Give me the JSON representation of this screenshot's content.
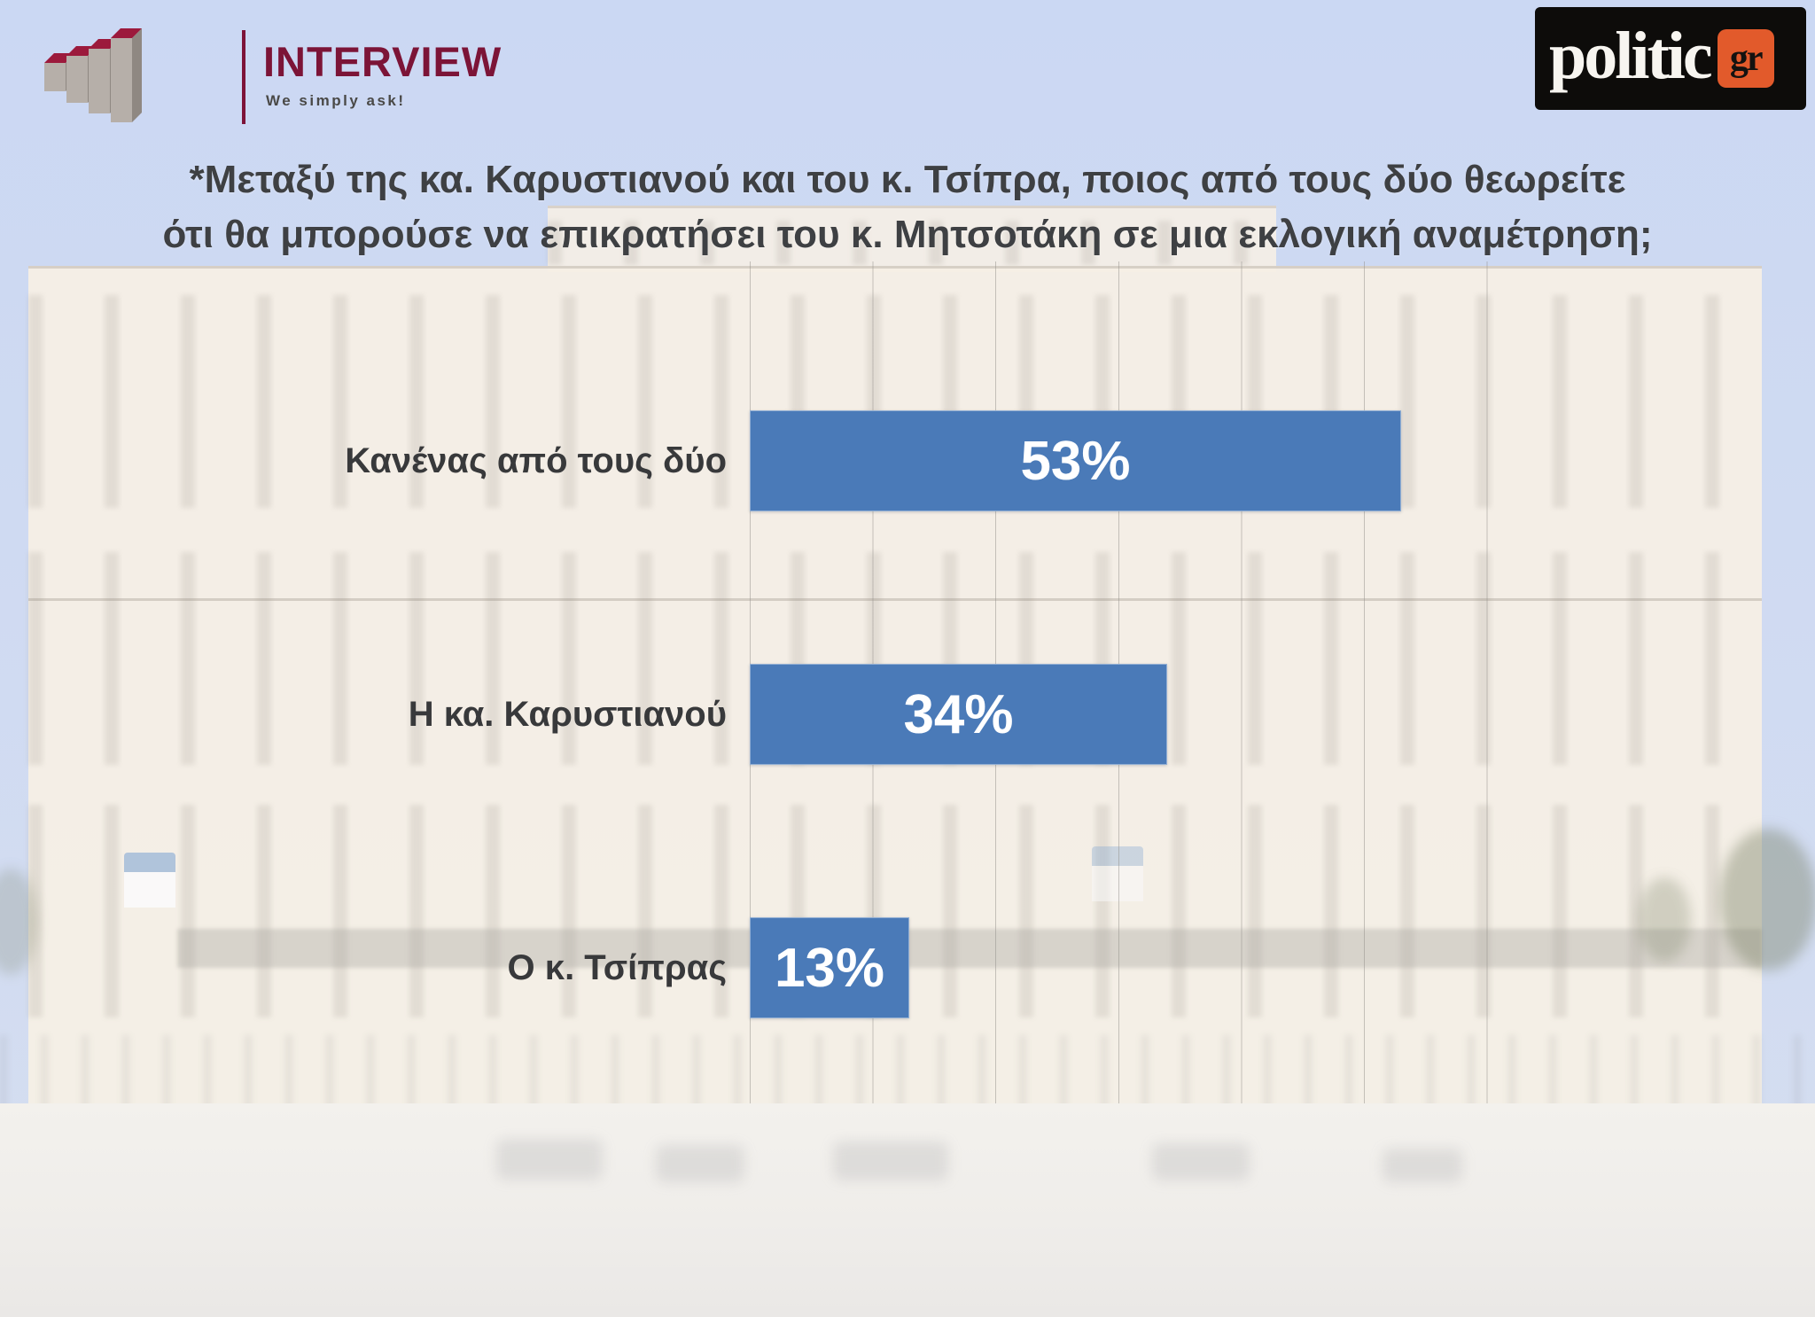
{
  "header": {
    "interview_logo": {
      "name": "INTERVIEW",
      "tagline": "We simply ask!",
      "brand_color": "#7c1437"
    },
    "politic_logo": {
      "name": "politic",
      "suffix": "gr",
      "accent_color": "#e25a2b"
    }
  },
  "question": {
    "line1": "*Μεταξύ της κα. Καρυστιανού και του κ. Τσίπρα, ποιος από τους δύο θεωρείτε",
    "line2": "ότι θα μπορούσε να επικρατήσει του κ. Μητσοτάκη σε μια εκλογική αναμέτρηση;"
  },
  "chart_data": {
    "type": "bar",
    "orientation": "horizontal",
    "title": "*Μεταξύ της κα. Καρυστιανού και του κ. Τσίπρα, ποιος από τους δύο θεωρείτε ότι θα μπορούσε να επικρατήσει του κ. Μητσοτάκη σε μια εκλογική αναμέτρηση;",
    "categories": [
      "Κανένας από τους δύο",
      "Η κα. Καρυστιανού",
      "Ο κ. Τσίπρας"
    ],
    "values": [
      53,
      34,
      13
    ],
    "value_labels": [
      "53%",
      "34%",
      "13%"
    ],
    "xlim": [
      0,
      60
    ],
    "gridlines": "vertical major gridlines every 10%",
    "legend": "none",
    "bar_color": "#4a7ab8",
    "value_text_color": "#ffffff",
    "background": "faded photo of the Hellenic Parliament building"
  }
}
